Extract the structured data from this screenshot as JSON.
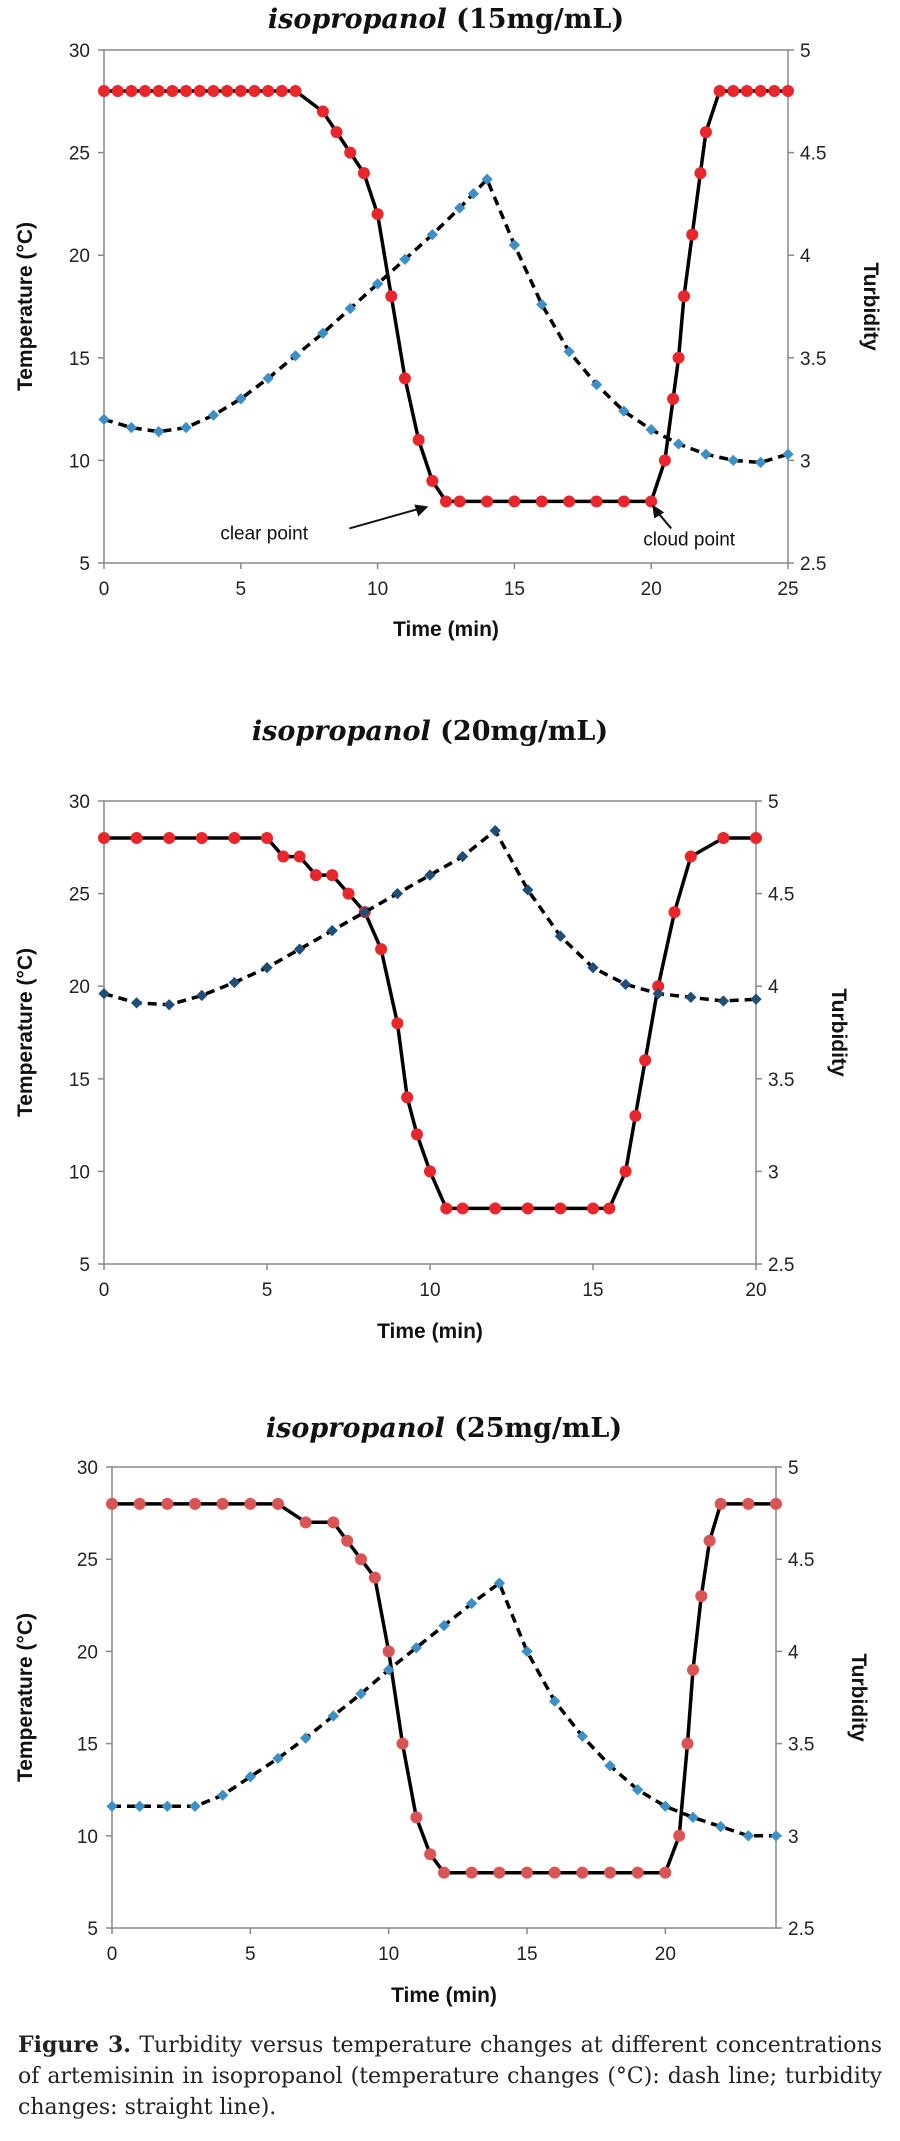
{
  "chart_data": [
    {
      "type": "line",
      "title": "isopropanol (15mg/mL)",
      "title_solvent": "isopropanol",
      "title_conc": "(15mg/mL)",
      "xlabel": "Time (min)",
      "ylabel": "Temperature (°C)",
      "y2label": "Turbidity",
      "xlim": [
        0,
        25
      ],
      "ylim": [
        5,
        30
      ],
      "y2lim": [
        2.5,
        5
      ],
      "xticks": [
        0,
        5,
        10,
        15,
        20,
        25
      ],
      "yticks": [
        5,
        10,
        15,
        20,
        25,
        30
      ],
      "y2ticks": [
        "2.5",
        "3",
        "3.5",
        "4",
        "4.5",
        "5"
      ],
      "colors": {
        "turbidity": "#e8262b",
        "temperature": "#3d8fc5"
      },
      "series": [
        {
          "name": "Turbidity",
          "axis": "right",
          "style": "solid",
          "x": [
            0,
            0.5,
            1,
            1.5,
            2,
            2.5,
            3,
            3.5,
            4,
            4.5,
            5,
            5.5,
            6,
            6.5,
            7,
            8,
            8.5,
            9,
            9.5,
            10,
            10.5,
            11,
            11.5,
            12,
            12.5,
            13,
            14,
            15,
            16,
            17,
            18,
            19,
            20,
            20.5,
            20.8,
            21,
            21.2,
            21.5,
            21.8,
            22,
            22.5,
            23,
            23.5,
            24,
            24.5,
            25
          ],
          "y": [
            4.8,
            4.8,
            4.8,
            4.8,
            4.8,
            4.8,
            4.8,
            4.8,
            4.8,
            4.8,
            4.8,
            4.8,
            4.8,
            4.8,
            4.8,
            4.7,
            4.6,
            4.5,
            4.4,
            4.2,
            3.8,
            3.4,
            3.1,
            2.9,
            2.8,
            2.8,
            2.8,
            2.8,
            2.8,
            2.8,
            2.8,
            2.8,
            2.8,
            3.0,
            3.3,
            3.5,
            3.8,
            4.1,
            4.4,
            4.6,
            4.8,
            4.8,
            4.8,
            4.8,
            4.8,
            4.8
          ]
        },
        {
          "name": "Temperature",
          "axis": "left",
          "style": "dashed",
          "x": [
            0,
            1,
            2,
            3,
            4,
            5,
            6,
            7,
            8,
            9,
            10,
            11,
            12,
            13,
            13.5,
            14,
            15,
            16,
            17,
            18,
            19,
            20,
            21,
            22,
            23,
            24,
            25
          ],
          "y": [
            12.0,
            11.6,
            11.4,
            11.6,
            12.2,
            13.0,
            14.0,
            15.1,
            16.2,
            17.4,
            18.6,
            19.8,
            21.0,
            22.3,
            23.0,
            23.7,
            20.5,
            17.6,
            15.3,
            13.7,
            12.4,
            11.5,
            10.8,
            10.3,
            10.0,
            9.9,
            10.3
          ]
        }
      ],
      "annotations": [
        {
          "text": "clear point",
          "x": 12,
          "y": 8
        },
        {
          "text": "cloud point",
          "x": 20,
          "y": 8
        }
      ]
    },
    {
      "type": "line",
      "title": "isopropanol (20mg/mL)",
      "title_solvent": "isopropanol",
      "title_conc": "(20mg/mL)",
      "xlabel": "Time (min)",
      "ylabel": "Temperature (°C)",
      "y2label": "Turbidity",
      "xlim": [
        0,
        20
      ],
      "ylim": [
        5,
        30
      ],
      "y2lim": [
        2.5,
        5
      ],
      "xticks": [
        0,
        5,
        10,
        15,
        20
      ],
      "yticks": [
        5,
        10,
        15,
        20,
        25,
        30
      ],
      "y2ticks": [
        "2.5",
        "3",
        "3.5",
        "4",
        "4.5",
        "5"
      ],
      "colors": {
        "turbidity": "#e8262b",
        "temperature": "#1f4e79"
      },
      "series": [
        {
          "name": "Turbidity",
          "axis": "right",
          "style": "solid",
          "x": [
            0,
            1,
            2,
            3,
            4,
            5,
            5.5,
            6,
            6.5,
            7,
            7.5,
            8,
            8.5,
            9,
            9.3,
            9.6,
            10,
            10.5,
            11,
            12,
            13,
            14,
            15,
            15.5,
            16,
            16.3,
            16.6,
            17,
            17.5,
            18,
            19,
            20
          ],
          "y": [
            4.8,
            4.8,
            4.8,
            4.8,
            4.8,
            4.8,
            4.7,
            4.7,
            4.6,
            4.6,
            4.5,
            4.4,
            4.2,
            3.8,
            3.4,
            3.2,
            3.0,
            2.8,
            2.8,
            2.8,
            2.8,
            2.8,
            2.8,
            2.8,
            3.0,
            3.3,
            3.6,
            4.0,
            4.4,
            4.7,
            4.8,
            4.8
          ]
        },
        {
          "name": "Temperature",
          "axis": "left",
          "style": "dashed",
          "x": [
            0,
            1,
            2,
            3,
            4,
            5,
            6,
            7,
            8,
            9,
            10,
            11,
            12,
            13,
            14,
            15,
            16,
            17,
            18,
            19,
            20
          ],
          "y": [
            19.6,
            19.1,
            19.0,
            19.5,
            20.2,
            21.0,
            22.0,
            23.0,
            24.0,
            25.0,
            26.0,
            27.0,
            28.4,
            25.2,
            22.7,
            21.0,
            20.1,
            19.6,
            19.4,
            19.2,
            19.3
          ]
        }
      ],
      "annotations": []
    },
    {
      "type": "line",
      "title": "isopropanol (25mg/mL)",
      "title_solvent": "isopropanol",
      "title_conc": "(25mg/mL)",
      "xlabel": "Time (min)",
      "ylabel": "Temperature (°C)",
      "y2label": "Turbidity",
      "xlim": [
        0,
        24
      ],
      "ylim": [
        5,
        30
      ],
      "y2lim": [
        2.5,
        5
      ],
      "xticks": [
        0,
        5,
        10,
        15,
        20
      ],
      "yticks": [
        5,
        10,
        15,
        20,
        25,
        30
      ],
      "y2ticks": [
        "2.5",
        "3",
        "3.5",
        "4",
        "4.5",
        "5"
      ],
      "colors": {
        "turbidity": "#d95454",
        "temperature": "#3d8fc5"
      },
      "series": [
        {
          "name": "Turbidity",
          "axis": "right",
          "style": "solid",
          "x": [
            0,
            1,
            2,
            3,
            4,
            5,
            6,
            7,
            8,
            8.5,
            9,
            9.5,
            10,
            10.5,
            11,
            11.5,
            12,
            13,
            14,
            15,
            16,
            17,
            18,
            19,
            20,
            20.5,
            20.8,
            21,
            21.3,
            21.6,
            22,
            23,
            24
          ],
          "y": [
            4.8,
            4.8,
            4.8,
            4.8,
            4.8,
            4.8,
            4.8,
            4.7,
            4.7,
            4.6,
            4.5,
            4.4,
            4.0,
            3.5,
            3.1,
            2.9,
            2.8,
            2.8,
            2.8,
            2.8,
            2.8,
            2.8,
            2.8,
            2.8,
            2.8,
            3.0,
            3.5,
            3.9,
            4.3,
            4.6,
            4.8,
            4.8,
            4.8
          ]
        },
        {
          "name": "Temperature",
          "axis": "left",
          "style": "dashed",
          "x": [
            0,
            1,
            2,
            3,
            4,
            5,
            6,
            7,
            8,
            9,
            10,
            11,
            12,
            13,
            14,
            15,
            16,
            17,
            18,
            19,
            20,
            21,
            22,
            23,
            24
          ],
          "y": [
            11.6,
            11.6,
            11.6,
            11.6,
            12.2,
            13.2,
            14.2,
            15.3,
            16.5,
            17.7,
            19.0,
            20.2,
            21.4,
            22.6,
            23.7,
            20.0,
            17.3,
            15.4,
            13.8,
            12.5,
            11.6,
            11.0,
            10.5,
            10.0,
            10.0
          ]
        }
      ],
      "annotations": []
    }
  ],
  "caption": {
    "label": "Figure 3.",
    "text": "Turbidity versus temperature changes at different concentrations of artemisinin in isopropanol (temperature changes (°C): dash line; turbidity changes: straight line)."
  }
}
